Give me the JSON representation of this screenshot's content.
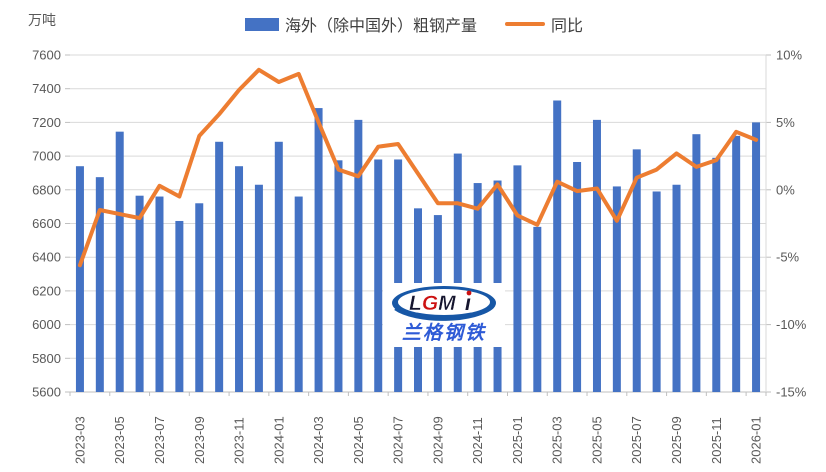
{
  "unit_label": "万吨",
  "legend": {
    "items": [
      {
        "label": "海外（除中国外）粗钢产量",
        "marker": "bar-swatch",
        "color": "#4472C4"
      },
      {
        "label": "同比",
        "marker": "line-swatch",
        "color": "#ED7D31"
      }
    ]
  },
  "watermark": {
    "logo_text": "LGMi",
    "company": "兰格钢铁"
  },
  "colors": {
    "bar": "#4472C4",
    "line": "#ED7D31",
    "gridline": "#D9D9D9",
    "axis_line": "#BFBFBF",
    "axis_text": "#595959",
    "logo_ellipse": "#1757A6",
    "logo_red": "#CC1111"
  },
  "chart_data": {
    "type": "combo-bar-line",
    "title": "",
    "categories": [
      "2023-03",
      "2023-04",
      "2023-05",
      "2023-06",
      "2023-07",
      "2023-08",
      "2023-09",
      "2023-10",
      "2023-11",
      "2023-12",
      "2024-01",
      "2024-02",
      "2024-03",
      "2024-04",
      "2024-05",
      "2024-06",
      "2024-07",
      "2024-08",
      "2024-09",
      "2024-10",
      "2024-11",
      "2024-12",
      "2025-01",
      "2025-02",
      "2025-03",
      "2025-04",
      "2025-05",
      "2025-06",
      "2025-07",
      "2025-08",
      "2025-09",
      "2025-10",
      "2025-11",
      "2025-12",
      "2026-01"
    ],
    "series": [
      {
        "name": "海外（除中国外）粗钢产量",
        "type": "bar",
        "axis": "left",
        "color": "#4472C4",
        "values": [
          6940,
          6875,
          7145,
          6765,
          6760,
          6615,
          6720,
          7085,
          6940,
          6830,
          7085,
          6760,
          7285,
          6975,
          7215,
          6980,
          6980,
          6690,
          6650,
          7015,
          6840,
          6855,
          6945,
          6580,
          7330,
          6965,
          7215,
          6820,
          7040,
          6790,
          6830,
          7130,
          6990,
          7120,
          7200
        ]
      },
      {
        "name": "同比",
        "type": "line",
        "axis": "right",
        "color": "#ED7D31",
        "values": [
          -5.6,
          -1.5,
          -1.8,
          -2.1,
          0.3,
          -0.5,
          4.0,
          5.6,
          7.4,
          8.9,
          8.0,
          8.6,
          5.0,
          1.5,
          1.0,
          3.2,
          3.4,
          1.2,
          -1.0,
          -1.0,
          -1.4,
          0.4,
          -1.9,
          -2.6,
          0.6,
          -0.1,
          0.1,
          -2.3,
          0.9,
          1.5,
          2.7,
          1.7,
          2.2,
          4.3,
          3.7
        ]
      }
    ],
    "y_left": {
      "label": "万吨",
      "min": 5600,
      "max": 7600,
      "step": 200,
      "tick_labels": [
        "7600",
        "7400",
        "7200",
        "7000",
        "6800",
        "6600",
        "6400",
        "6200",
        "6000",
        "5800",
        "5600"
      ]
    },
    "y_right": {
      "min": -15,
      "max": 10,
      "step": 5,
      "format": "percent",
      "tick_labels": [
        "10%",
        "5%",
        "0%",
        "-5%",
        "-10%",
        "-15%"
      ]
    },
    "x_tick_label_interval": 2,
    "grid": "horizontal",
    "legend_position": "top"
  }
}
